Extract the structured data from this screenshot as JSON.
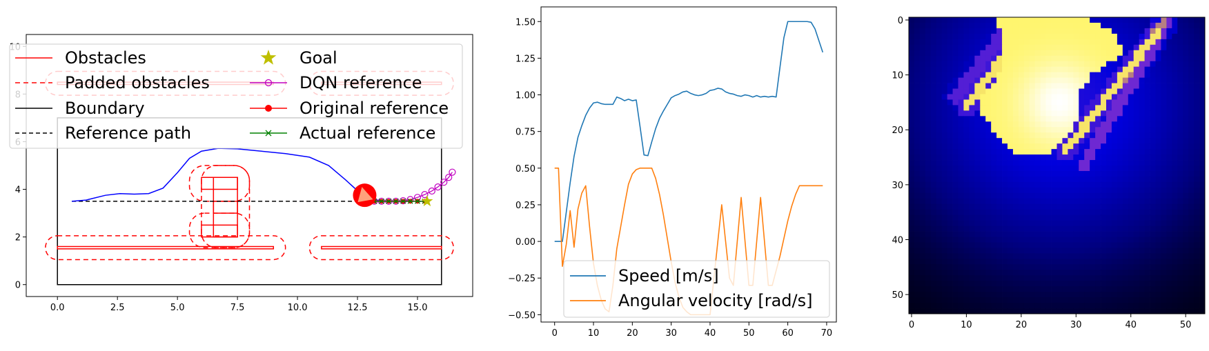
{
  "colors": {
    "obstacle": "#ff0000",
    "trajectory": "#0000ff",
    "dqn": "#c000c0",
    "actual": "#008000",
    "goal": "#bfbf00",
    "speed": "#1f77b4",
    "angular": "#ff7f0e",
    "boundary": "#000000"
  },
  "chart_data": [
    {
      "type": "line",
      "title": "",
      "xlabel": "",
      "ylabel": "",
      "xlim": [
        -1.3,
        17.3
      ],
      "ylim": [
        -0.5,
        10.5
      ],
      "xticks": [
        0.0,
        2.5,
        5.0,
        7.5,
        10.0,
        12.5,
        15.0
      ],
      "xtick_labels": [
        "0.0",
        "2.5",
        "5.0",
        "7.5",
        "10.0",
        "12.5",
        "15.0"
      ],
      "yticks": [
        0,
        2,
        4,
        6,
        8,
        10
      ],
      "ytick_labels": [
        "0",
        "2",
        "4",
        "6",
        "8",
        "10"
      ],
      "legend_position": "top",
      "legend": [
        "Obstacles",
        "Padded obstacles",
        "Boundary",
        "Reference path",
        "Goal",
        "DQN reference",
        "Original reference",
        "Actual reference"
      ],
      "boundary": [
        [
          0,
          0
        ],
        [
          16,
          0
        ],
        [
          16,
          7
        ],
        [
          0,
          7
        ]
      ],
      "obstacles": [
        [
          [
            0,
            1.5
          ],
          [
            9,
            1.5
          ],
          [
            9,
            1.6
          ],
          [
            0,
            1.6
          ]
        ],
        [
          [
            11,
            1.5
          ],
          [
            16,
            1.5
          ],
          [
            16,
            1.6
          ],
          [
            11,
            1.6
          ]
        ],
        [
          [
            0,
            8.4
          ],
          [
            9,
            8.4
          ],
          [
            9,
            8.5
          ],
          [
            0,
            8.5
          ]
        ],
        [
          [
            11,
            8.4
          ],
          [
            16,
            8.4
          ],
          [
            16,
            8.5
          ],
          [
            11,
            8.5
          ]
        ],
        [
          [
            6,
            2
          ],
          [
            7.5,
            2
          ],
          [
            7.5,
            2.5
          ],
          [
            6,
            2.5
          ]
        ],
        [
          [
            6.5,
            2
          ],
          [
            7.5,
            2
          ],
          [
            7.5,
            4.5
          ],
          [
            6.5,
            4.5
          ]
        ],
        [
          [
            6,
            4
          ],
          [
            7.5,
            4
          ],
          [
            7.5,
            4.5
          ],
          [
            6,
            4.5
          ]
        ],
        [
          [
            6.5,
            3
          ],
          [
            7.5,
            3
          ],
          [
            7.5,
            3.5
          ],
          [
            6.5,
            3.5
          ]
        ]
      ],
      "padded_obstacles": [
        [
          -0.5,
          1.05,
          9.5,
          2.05
        ],
        [
          10.5,
          1.05,
          16.5,
          2.05
        ],
        [
          -0.5,
          7.95,
          9.5,
          8.95
        ],
        [
          10.5,
          7.95,
          16.5,
          8.95
        ],
        [
          5.5,
          1.55,
          8.0,
          3.0
        ],
        [
          6.0,
          1.55,
          8.0,
          5.0
        ],
        [
          5.5,
          3.5,
          8.0,
          5.0
        ]
      ],
      "reference_path": [
        [
          0.6,
          3.5
        ],
        [
          15.4,
          3.5
        ]
      ],
      "trajectory": [
        [
          0.6,
          3.5
        ],
        [
          1.2,
          3.55
        ],
        [
          2.0,
          3.75
        ],
        [
          2.6,
          3.82
        ],
        [
          3.2,
          3.8
        ],
        [
          3.8,
          3.82
        ],
        [
          4.4,
          4.05
        ],
        [
          5.0,
          4.7
        ],
        [
          5.5,
          5.3
        ],
        [
          6.0,
          5.6
        ],
        [
          6.7,
          5.72
        ],
        [
          7.5,
          5.7
        ],
        [
          8.5,
          5.6
        ],
        [
          9.5,
          5.5
        ],
        [
          10.5,
          5.35
        ],
        [
          11.3,
          5.0
        ],
        [
          12.0,
          4.4
        ],
        [
          12.6,
          3.85
        ],
        [
          13.0,
          3.6
        ],
        [
          13.5,
          3.52
        ],
        [
          14.5,
          3.5
        ],
        [
          15.3,
          3.5
        ]
      ],
      "vehicle": {
        "x": 12.8,
        "y": 3.75
      },
      "dqn_reference": [
        [
          13.2,
          3.5
        ],
        [
          13.5,
          3.5
        ],
        [
          13.8,
          3.5
        ],
        [
          14.1,
          3.5
        ],
        [
          14.4,
          3.52
        ],
        [
          14.7,
          3.57
        ],
        [
          15.0,
          3.66
        ],
        [
          15.3,
          3.78
        ],
        [
          15.6,
          3.93
        ],
        [
          15.85,
          4.1
        ],
        [
          16.1,
          4.3
        ],
        [
          16.3,
          4.5
        ],
        [
          16.45,
          4.72
        ]
      ],
      "original_reference": [
        [
          13.2,
          3.5
        ],
        [
          13.5,
          3.5
        ],
        [
          13.8,
          3.5
        ],
        [
          14.1,
          3.5
        ],
        [
          14.4,
          3.5
        ],
        [
          14.7,
          3.5
        ],
        [
          15.0,
          3.5
        ],
        [
          15.3,
          3.5
        ]
      ],
      "actual_reference": [
        [
          13.2,
          3.5
        ],
        [
          13.5,
          3.5
        ],
        [
          13.8,
          3.5
        ],
        [
          14.1,
          3.5
        ],
        [
          14.4,
          3.5
        ],
        [
          14.7,
          3.5
        ],
        [
          15.0,
          3.5
        ],
        [
          15.3,
          3.5
        ]
      ],
      "goal": {
        "x": 15.4,
        "y": 3.5
      }
    },
    {
      "type": "line",
      "title": "",
      "xlabel": "",
      "ylabel": "",
      "xlim": [
        -3.5,
        72.5
      ],
      "ylim": [
        -0.55,
        1.6
      ],
      "xticks": [
        0,
        10,
        20,
        30,
        40,
        50,
        60,
        70
      ],
      "xtick_labels": [
        "0",
        "10",
        "20",
        "30",
        "40",
        "50",
        "60",
        "70"
      ],
      "yticks": [
        -0.5,
        -0.25,
        0.0,
        0.25,
        0.5,
        0.75,
        1.0,
        1.25,
        1.5
      ],
      "ytick_labels": [
        "−0.50",
        "−0.25",
        "0.00",
        "0.25",
        "0.50",
        "0.75",
        "1.00",
        "1.25",
        "1.50"
      ],
      "legend_position": "lower center",
      "series": [
        {
          "name": "Speed [m/s]",
          "x": [
            0,
            1,
            2,
            3,
            4,
            5,
            6,
            7,
            8,
            9,
            10,
            11,
            12,
            13,
            14,
            15,
            16,
            17,
            18,
            19,
            20,
            21,
            22,
            23,
            24,
            25,
            26,
            27,
            28,
            29,
            30,
            31,
            32,
            33,
            34,
            35,
            36,
            37,
            38,
            39,
            40,
            41,
            42,
            43,
            44,
            45,
            46,
            47,
            48,
            49,
            50,
            51,
            52,
            53,
            54,
            55,
            56,
            57,
            58,
            59,
            60,
            61,
            62,
            63,
            64,
            65,
            66,
            67,
            68,
            69
          ],
          "values": [
            0.0,
            0.0,
            0.0,
            0.2,
            0.4,
            0.58,
            0.71,
            0.79,
            0.86,
            0.91,
            0.945,
            0.95,
            0.94,
            0.935,
            0.935,
            0.935,
            0.985,
            0.975,
            0.96,
            0.97,
            0.96,
            0.965,
            0.78,
            0.59,
            0.585,
            0.68,
            0.77,
            0.84,
            0.89,
            0.935,
            0.98,
            0.995,
            1.005,
            1.02,
            1.025,
            1.01,
            1.0,
            0.995,
            1.0,
            1.01,
            1.03,
            1.035,
            1.045,
            1.04,
            1.02,
            1.01,
            1.005,
            0.995,
            0.99,
            1.0,
            0.995,
            0.985,
            0.995,
            0.985,
            0.99,
            0.985,
            0.99,
            0.985,
            1.19,
            1.39,
            1.5,
            1.5,
            1.5,
            1.5,
            1.5,
            1.5,
            1.495,
            1.45,
            1.37,
            1.29
          ]
        },
        {
          "name": "Angular velocity [rad/s]",
          "x": [
            0,
            1,
            2,
            3,
            4,
            5,
            6,
            7,
            8,
            9,
            10,
            11,
            12,
            13,
            14,
            15,
            16,
            17,
            18,
            19,
            20,
            21,
            22,
            23,
            24,
            25,
            26,
            27,
            28,
            29,
            30,
            31,
            32,
            33,
            34,
            35,
            36,
            37,
            38,
            39,
            40,
            41,
            42,
            43,
            44,
            45,
            46,
            47,
            48,
            49,
            50,
            51,
            52,
            53,
            54,
            55,
            56,
            57,
            58,
            59,
            60,
            61,
            62,
            63,
            64,
            65,
            66,
            67,
            68,
            69
          ],
          "values": [
            0.5,
            0.5,
            -0.17,
            -0.02,
            0.21,
            -0.04,
            0.22,
            0.33,
            0.38,
            0.1,
            -0.15,
            -0.3,
            -0.4,
            -0.46,
            -0.48,
            -0.3,
            -0.05,
            0.1,
            0.25,
            0.39,
            0.46,
            0.49,
            0.5,
            0.5,
            0.5,
            0.5,
            0.43,
            0.32,
            0.18,
            0.02,
            -0.14,
            -0.28,
            -0.38,
            -0.45,
            -0.48,
            -0.5,
            -0.5,
            -0.5,
            -0.5,
            -0.5,
            -0.5,
            -0.25,
            0.0,
            0.25,
            0.0,
            -0.25,
            -0.3,
            0.0,
            0.3,
            0.0,
            -0.3,
            -0.3,
            0.0,
            0.3,
            0.0,
            -0.3,
            -0.3,
            -0.2,
            -0.1,
            0.02,
            0.14,
            0.24,
            0.32,
            0.38,
            0.38,
            0.38,
            0.38,
            0.38,
            0.38,
            0.38
          ]
        }
      ]
    },
    {
      "type": "heatmap",
      "title": "",
      "xlabel": "",
      "ylabel": "",
      "xlim": [
        -0.5,
        54.5
      ],
      "ylim": [
        54.5,
        -0.5
      ],
      "xticks": [
        0,
        10,
        20,
        30,
        40,
        50
      ],
      "xtick_labels": [
        "0",
        "10",
        "20",
        "30",
        "40",
        "50"
      ],
      "yticks": [
        0,
        10,
        20,
        30,
        40,
        50
      ],
      "ytick_labels": [
        "0",
        "10",
        "20",
        "30",
        "40",
        "50"
      ],
      "grid_size": [
        54,
        54
      ],
      "colormap": "gnuplot2",
      "bright_center": {
        "col": 27,
        "row": 15
      },
      "bright_polygon": [
        [
          16,
          -0.5
        ],
        [
          31,
          -0.5
        ],
        [
          37,
          2
        ],
        [
          39,
          6
        ],
        [
          33,
          10
        ],
        [
          31,
          13
        ],
        [
          31,
          17
        ],
        [
          28,
          22
        ],
        [
          25,
          25
        ],
        [
          22,
          25
        ],
        [
          19,
          24
        ],
        [
          15,
          20
        ],
        [
          13,
          17
        ],
        [
          13,
          14
        ],
        [
          16,
          10
        ],
        [
          17,
          5
        ],
        [
          16,
          1
        ]
      ],
      "stripes": [
        {
          "from": [
            8,
            14
          ],
          "to": [
            17,
            2
          ],
          "width": 2.2,
          "value": 0.55
        },
        {
          "from": [
            10,
            16
          ],
          "to": [
            18,
            5
          ],
          "width": 1.6,
          "value": 0.85
        },
        {
          "from": [
            31,
            27
          ],
          "to": [
            47,
            0
          ],
          "width": 2.0,
          "value": 0.6
        },
        {
          "from": [
            28,
            24
          ],
          "to": [
            45,
            2
          ],
          "width": 1.5,
          "value": 0.85
        },
        {
          "from": [
            38,
            12
          ],
          "to": [
            46,
            0
          ],
          "width": 1.4,
          "value": 0.7
        }
      ]
    }
  ]
}
